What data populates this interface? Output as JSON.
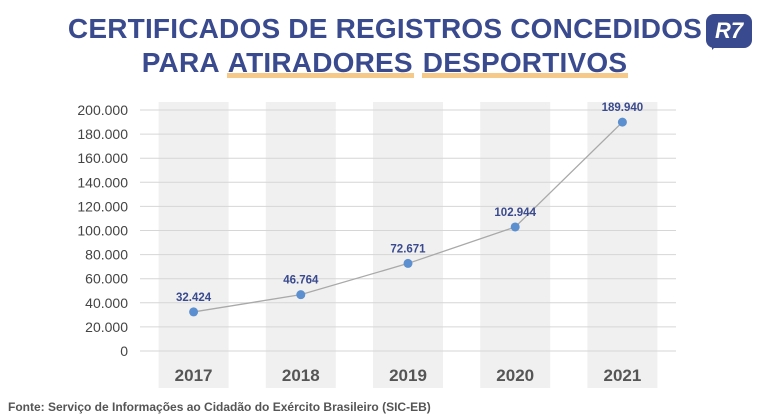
{
  "title": {
    "line1": "CERTIFICADOS DE REGISTROS CONCEDIDOS",
    "line2_prefix": "PARA ",
    "line2_highlight1": "ATIRADORES",
    "line2_space": " ",
    "line2_highlight2": "DESPORTIVOS"
  },
  "logo": {
    "text": "R7"
  },
  "footer": {
    "source": "Fonte: Serviço de Informações ao Cidadão do Exército Brasileiro (SIC-EB)"
  },
  "colors": {
    "title": "#3a4a8e",
    "point": "#5b8fcf",
    "line": "#a9a9a9",
    "band": "#f0f0f0",
    "grid": "#d6d6d6",
    "highlight": "#f5c98a"
  },
  "chart_data": {
    "type": "line",
    "categories": [
      "2017",
      "2018",
      "2019",
      "2020",
      "2021"
    ],
    "values": [
      32424,
      46764,
      72671,
      102944,
      189940
    ],
    "data_labels": [
      "32.424",
      "46.764",
      "72.671",
      "102.944",
      "189.940"
    ],
    "ylim": [
      0,
      200000
    ],
    "yticks": [
      0,
      20000,
      40000,
      60000,
      80000,
      100000,
      120000,
      140000,
      160000,
      180000,
      200000
    ],
    "ytick_labels": [
      "0",
      "20.000",
      "40.000",
      "60.000",
      "80.000",
      "100.000",
      "120.000",
      "140.000",
      "160.000",
      "180.000",
      "200.000"
    ],
    "grid": true,
    "xlabel": "",
    "ylabel": ""
  }
}
